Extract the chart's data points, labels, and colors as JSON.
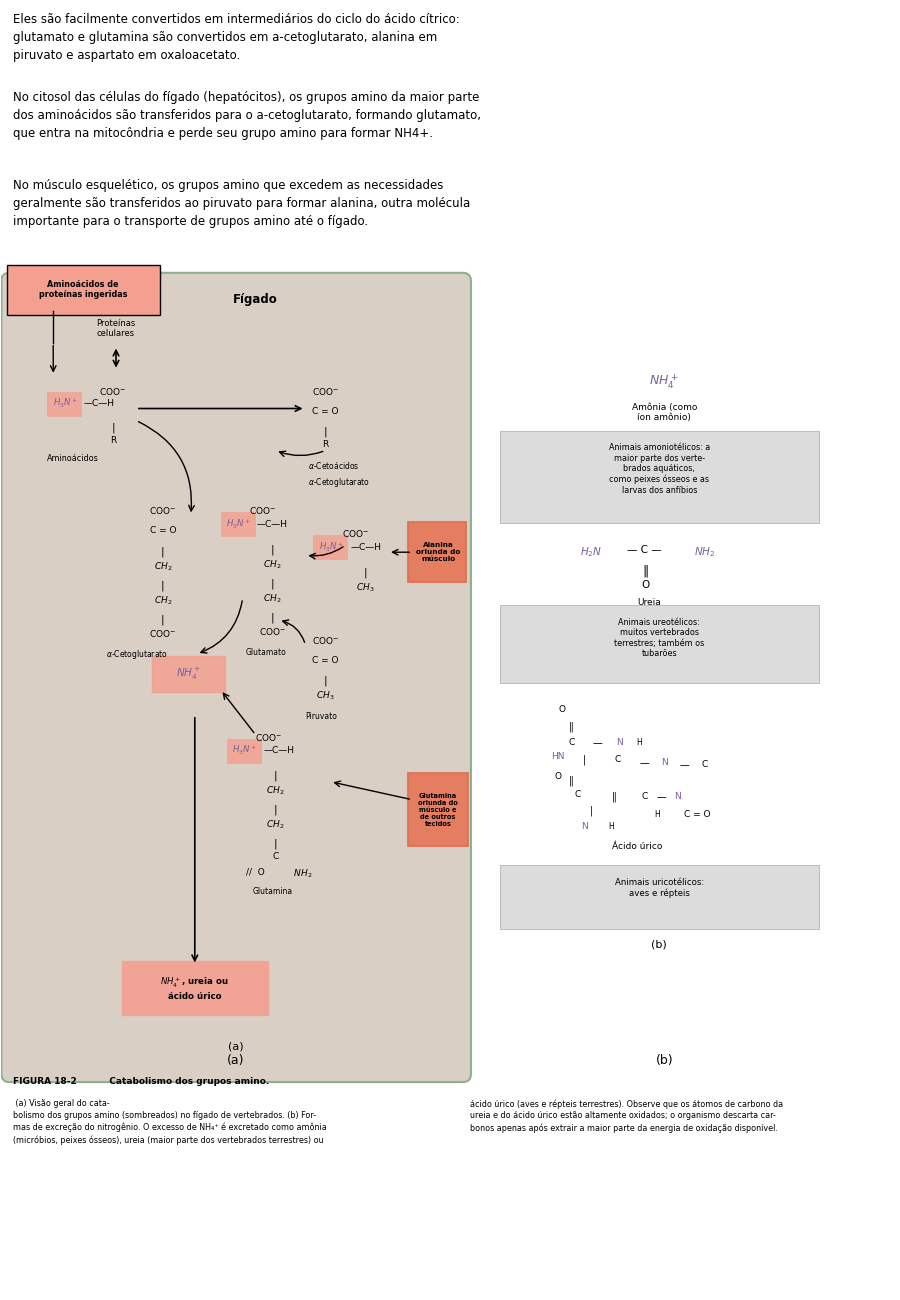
{
  "paragraph1": "Eles são facilmente convertidos em intermediários do ciclo do ácido cítrico:\nglutamato e glutamina são convertidos em a-cetoglutarato, alanina em\npiruvato e aspartato em oxaloacetato.",
  "paragraph2": "No citosol das células do fígado (hepatócitos), os grupos amino da maior parte\ndos aminoácidos são transferidos para o a-cetoglutarato, formando glutamato,\nque entra na mitocôndria e perde seu grupo amino para formar NH4+.",
  "paragraph3": "No músculo esquelético, os grupos amino que excedem as necessidades\ngeralmente são transferidos ao piruvato para formar alanina, outra molécula\nimportante para o transporte de grupos amino até o fígado.",
  "fig_caption_bold": "FIGURA 18-2   Catabolismo dos grupos amino.",
  "fig_caption_a": " (a) Visão geral do cata-\nbolismo dos grupos amino (sombreados) no fígado de vertebrados. (b) For-\nmas de excreção do nitrogênio. O excesso de NH₄⁺ é excretado como amônia\n(micróbios, peixes ósseos), ureia (maior parte dos vertebrados terrestres) ou",
  "fig_caption_b": "ácido úrico (aves e répteis terrestres). Observe que os átomos de carbono da\nureia e do ácido úrico estão altamente oxidados; o organismo descarta car-\nbonos apenas após extrair a maior parte da energia de oxidação disponível.",
  "bg_color": "#ffffff",
  "diagram_bg": "#d4c5b5",
  "diagram_border": "#a0b8a0",
  "highlight_salmon": "#f4a090",
  "highlight_gray": "#c8c8c8",
  "label_orange": "#e8734a",
  "purple_color": "#7b5ea0",
  "text_color": "#1a1a1a"
}
